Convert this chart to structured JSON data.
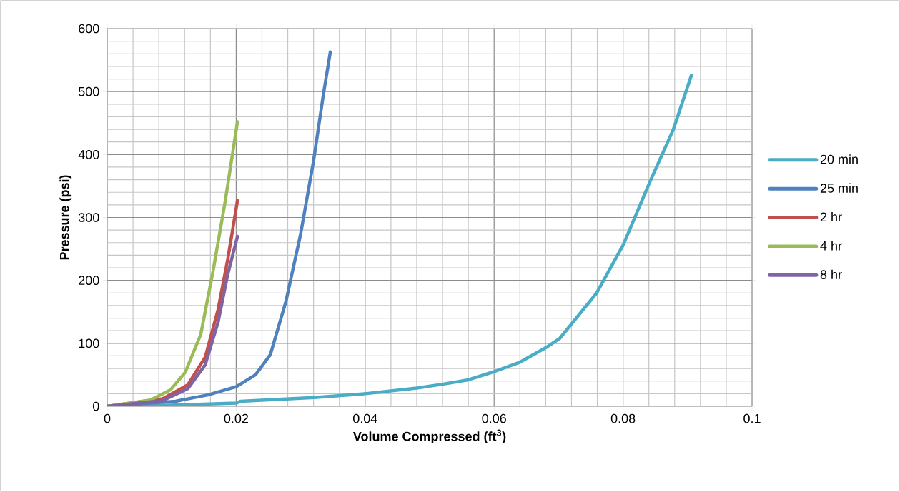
{
  "chart_data": {
    "type": "line",
    "xlabel": "Volume Compressed (ft$^{3}$)",
    "ylabel": "Pressure (psi)",
    "xlim": [
      0,
      0.1
    ],
    "ylim": [
      0,
      600
    ],
    "xticks": [
      0,
      0.02,
      0.04,
      0.06,
      0.08,
      0.1
    ],
    "yticks": [
      0,
      100,
      200,
      300,
      400,
      500,
      600
    ],
    "grid": true,
    "legend": "right",
    "marker": "none",
    "line_style": "solid",
    "series": [
      {
        "name": "20 min",
        "color": "#4bacc6",
        "x": [
          0,
          0.0106,
          0.02,
          0.0207,
          0.0321,
          0.04,
          0.048,
          0.052,
          0.056,
          0.06,
          0.064,
          0.068,
          0.0702,
          0.0759,
          0.08,
          0.084,
          0.0878,
          0.0906
        ],
        "values": [
          0,
          2,
          5,
          8,
          14,
          20,
          29,
          35,
          42,
          55,
          70,
          93,
          108,
          180,
          256,
          353,
          440,
          526
        ]
      },
      {
        "name": "25 min",
        "color": "#4f81bd",
        "x": [
          0,
          0.0106,
          0.0156,
          0.02,
          0.023,
          0.0253,
          0.0277,
          0.03,
          0.032,
          0.0335,
          0.0346
        ],
        "values": [
          0,
          8,
          18,
          31,
          50,
          82,
          166,
          274,
          390,
          494,
          563
        ]
      },
      {
        "name": "2 hr",
        "color": "#c0504d",
        "x": [
          0,
          0.0086,
          0.0125,
          0.0152,
          0.0172,
          0.0187,
          0.0202
        ],
        "values": [
          0,
          12,
          34,
          78,
          154,
          234,
          327
        ]
      },
      {
        "name": "4 hr",
        "color": "#9bbb59",
        "x": [
          0,
          0.0067,
          0.0098,
          0.0121,
          0.0145,
          0.0164,
          0.0183,
          0.0202
        ],
        "values": [
          0,
          10,
          26,
          54,
          114,
          214,
          326,
          452
        ]
      },
      {
        "name": "8 hr",
        "color": "#8064a2",
        "x": [
          0,
          0.0086,
          0.0125,
          0.0152,
          0.0172,
          0.0187,
          0.0202
        ],
        "values": [
          0,
          9,
          28,
          66,
          134,
          210,
          270
        ]
      }
    ]
  }
}
